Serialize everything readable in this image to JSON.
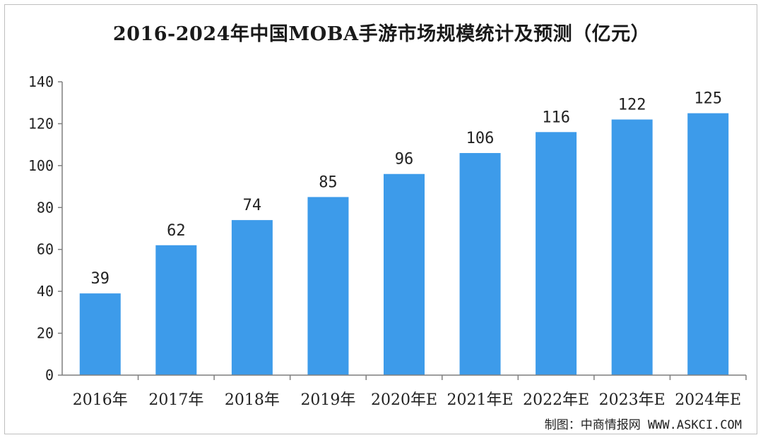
{
  "chart_data": {
    "type": "bar",
    "title": "2016-2024年中国MOBA手游市场规模统计及预测（亿元）",
    "categories": [
      "2016年",
      "2017年",
      "2018年",
      "2019年",
      "2020年E",
      "2021年E",
      "2022年E",
      "2023年E",
      "2024年E"
    ],
    "values": [
      39,
      62,
      74,
      85,
      96,
      106,
      116,
      122,
      125
    ],
    "ylim": [
      0,
      140
    ],
    "yticks": [
      0,
      20,
      40,
      60,
      80,
      100,
      120,
      140
    ],
    "xlabel": "",
    "ylabel": "",
    "grid": false,
    "bar_color": "#3d9bea"
  },
  "source": "制图：中商情报网 WWW.ASKCI.COM"
}
